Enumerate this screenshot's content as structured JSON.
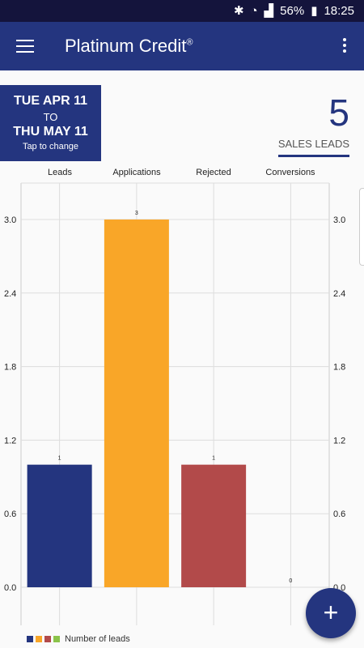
{
  "status_bar": {
    "battery": "56%",
    "time": "18:25"
  },
  "app_bar": {
    "title": "Platinum Credit",
    "trademark": "®"
  },
  "date_range": {
    "start": "TUE APR 11",
    "to": "TO",
    "end": "THU MAY 11",
    "hint": "Tap to change"
  },
  "summary": {
    "count": "5",
    "label": "SALES LEADS"
  },
  "legend": {
    "label": "Number of leads"
  },
  "fab": {
    "label": "+"
  },
  "colors": {
    "primary": "#24357f",
    "leads": "#24357f",
    "applications": "#f9a628",
    "rejected": "#b24a4a",
    "conversions": "#8bc34a"
  },
  "chart_data": {
    "type": "bar",
    "categories": [
      "Leads",
      "Applications",
      "Rejected",
      "Conversions"
    ],
    "values": [
      1,
      3,
      1,
      0
    ],
    "data_labels": [
      "1",
      "3",
      "1",
      "0"
    ],
    "ylim": [
      0,
      3.3
    ],
    "yticks": [
      "0.0",
      "0.6",
      "1.2",
      "1.8",
      "2.4",
      "3.0"
    ],
    "bar_colors": [
      "#24357f",
      "#f9a628",
      "#b24a4a",
      "#8bc34a"
    ],
    "series": [
      {
        "name": "Number of leads",
        "values": [
          1,
          3,
          1,
          0
        ]
      }
    ],
    "grid": true,
    "legend_position": "bottom-left"
  }
}
